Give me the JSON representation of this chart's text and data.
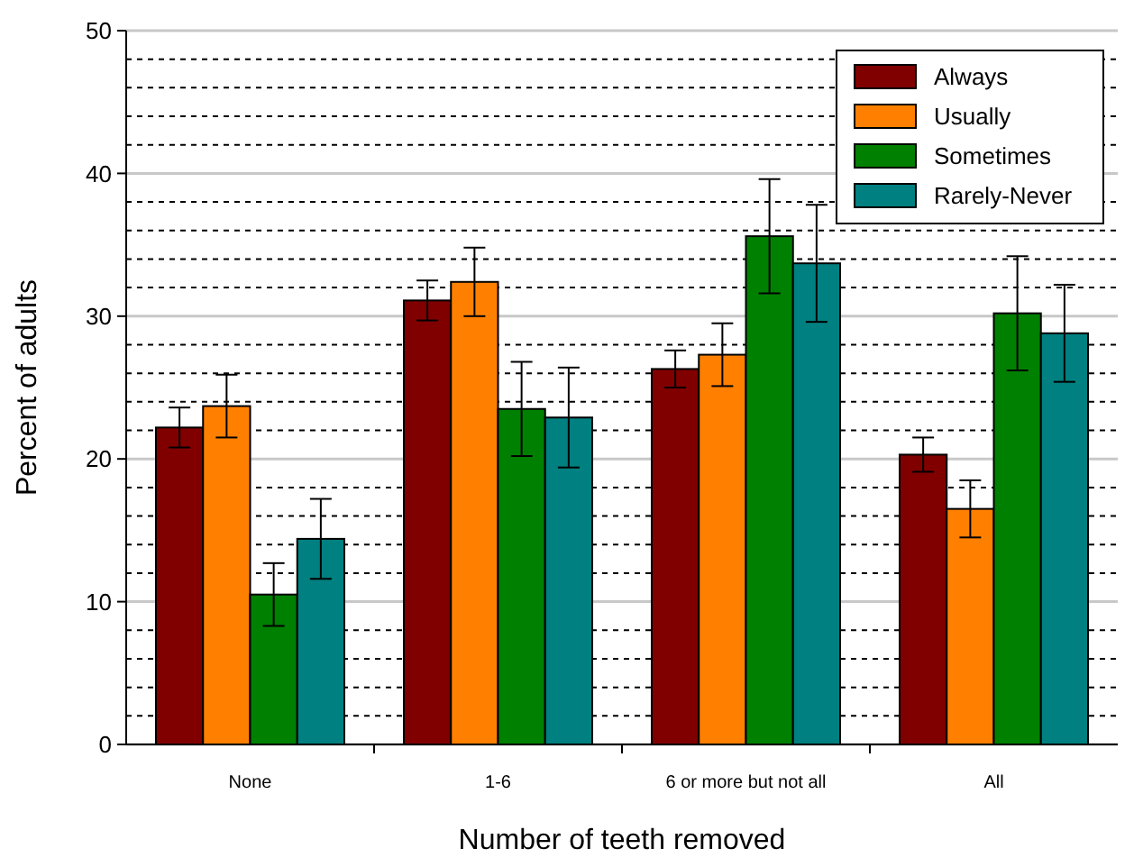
{
  "chart_data": {
    "type": "bar",
    "xlabel": "Number of teeth removed",
    "ylabel": "Percent of adults",
    "categories": [
      "None",
      "1-6",
      "6 or more but not all",
      "All"
    ],
    "series": [
      {
        "name": "Always",
        "color": "#800000",
        "values": [
          22.2,
          31.1,
          26.3,
          20.3
        ],
        "errors": [
          1.4,
          1.4,
          1.3,
          1.2
        ]
      },
      {
        "name": "Usually",
        "color": "#ff8000",
        "values": [
          23.7,
          32.4,
          27.3,
          16.5
        ],
        "errors": [
          2.2,
          2.4,
          2.2,
          2.0
        ]
      },
      {
        "name": "Sometimes",
        "color": "#008000",
        "values": [
          10.5,
          23.5,
          35.6,
          30.2
        ],
        "errors": [
          2.2,
          3.3,
          4.0,
          4.0
        ]
      },
      {
        "name": "Rarely-Never",
        "color": "#008080",
        "values": [
          14.4,
          22.9,
          33.7,
          28.8
        ],
        "errors": [
          2.8,
          3.5,
          4.1,
          3.4
        ]
      }
    ],
    "ylim": [
      0,
      50
    ],
    "yticks": [
      0,
      {
        "value": 2,
        "label": null
      },
      {
        "value": 4,
        "label": null
      },
      {
        "value": 6,
        "label": null
      },
      {
        "value": 8,
        "label": null
      },
      10,
      {
        "value": 12,
        "label": null
      },
      {
        "value": 14,
        "label": null
      },
      {
        "value": 16,
        "label": null
      },
      {
        "value": 18,
        "label": null
      },
      20,
      {
        "value": 22,
        "label": null
      },
      {
        "value": 24,
        "label": null
      },
      {
        "value": 26,
        "label": null
      },
      {
        "value": 28,
        "label": null
      },
      30,
      {
        "value": 32,
        "label": null
      },
      {
        "value": 34,
        "label": null
      },
      {
        "value": 36,
        "label": null
      },
      {
        "value": 38,
        "label": null
      },
      40,
      {
        "value": 42,
        "label": null
      },
      {
        "value": 44,
        "label": null
      },
      {
        "value": 46,
        "label": null
      },
      {
        "value": 48,
        "label": null
      },
      50
    ],
    "grid": "y",
    "legend": "top right"
  }
}
